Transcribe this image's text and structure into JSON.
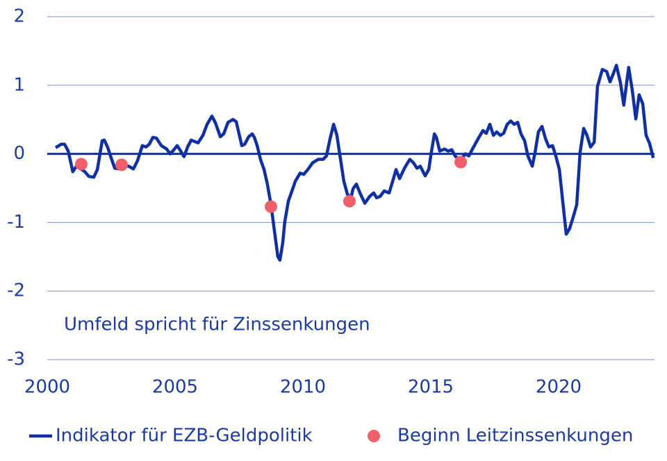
{
  "chart_data": {
    "type": "line",
    "annotation": "Umfeld spricht für Zinssenkungen",
    "xlim": [
      2000,
      2023.75
    ],
    "xticks": [
      2000,
      2005,
      2010,
      2015,
      2020
    ],
    "ylim": [
      -3,
      2
    ],
    "yticks": [
      -3,
      -2,
      -1,
      0,
      1,
      2
    ],
    "grid": true,
    "legend": "bottom",
    "series": [
      {
        "name": "Indikator für EZB-Geldpolitik",
        "type": "line",
        "color": "#0f2fa3",
        "x": [
          2000.33,
          2000.54,
          2000.68,
          2000.82,
          2001.0,
          2001.14,
          2001.28,
          2001.47,
          2001.63,
          2001.82,
          2001.96,
          2002.15,
          2002.23,
          2002.36,
          2002.5,
          2002.64,
          2002.83,
          2002.99,
          2003.18,
          2003.37,
          2003.53,
          2003.72,
          2003.86,
          2003.99,
          2004.13,
          2004.27,
          2004.46,
          2004.67,
          2004.81,
          2004.95,
          2005.08,
          2005.22,
          2005.35,
          2005.49,
          2005.63,
          2005.9,
          2006.09,
          2006.25,
          2006.44,
          2006.58,
          2006.77,
          2006.9,
          2007.07,
          2007.26,
          2007.39,
          2007.61,
          2007.72,
          2007.88,
          2008.02,
          2008.1,
          2008.21,
          2008.34,
          2008.48,
          2008.61,
          2008.75,
          2008.89,
          2009.02,
          2009.1,
          2009.21,
          2009.29,
          2009.43,
          2009.57,
          2009.7,
          2009.89,
          2010.03,
          2010.19,
          2010.38,
          2010.6,
          2010.79,
          2010.92,
          2011.06,
          2011.2,
          2011.33,
          2011.47,
          2011.6,
          2011.74,
          2011.88,
          2011.96,
          2012.09,
          2012.23,
          2012.42,
          2012.61,
          2012.77,
          2012.88,
          2013.02,
          2013.18,
          2013.37,
          2013.51,
          2013.64,
          2013.78,
          2013.97,
          2014.18,
          2014.32,
          2014.46,
          2014.59,
          2014.78,
          2014.92,
          2015.0,
          2015.14,
          2015.22,
          2015.35,
          2015.54,
          2015.68,
          2015.82,
          2015.95,
          2016.09,
          2016.22,
          2016.36,
          2016.49,
          2016.63,
          2016.85,
          2017.04,
          2017.17,
          2017.31,
          2017.45,
          2017.58,
          2017.72,
          2017.85,
          2017.99,
          2018.13,
          2018.26,
          2018.4,
          2018.53,
          2018.67,
          2018.8,
          2018.97,
          2019.08,
          2019.21,
          2019.35,
          2019.49,
          2019.62,
          2019.76,
          2019.89,
          2020.03,
          2020.16,
          2020.3,
          2020.43,
          2020.57,
          2020.71,
          2020.84,
          2020.98,
          2021.11,
          2021.25,
          2021.39,
          2021.52,
          2021.71,
          2021.88,
          2022.01,
          2022.12,
          2022.26,
          2022.42,
          2022.55,
          2022.74,
          2022.88,
          2023.02,
          2023.15,
          2023.29,
          2023.42,
          2023.56,
          2023.7
        ],
        "values": [
          0.09,
          0.14,
          0.14,
          0.04,
          -0.26,
          -0.18,
          -0.21,
          -0.26,
          -0.33,
          -0.34,
          -0.23,
          0.19,
          0.2,
          0.1,
          -0.06,
          -0.21,
          -0.22,
          -0.16,
          -0.18,
          -0.22,
          -0.1,
          0.12,
          0.1,
          0.14,
          0.24,
          0.23,
          0.12,
          0.07,
          0.0,
          0.06,
          0.12,
          0.04,
          -0.04,
          0.1,
          0.2,
          0.16,
          0.27,
          0.43,
          0.55,
          0.45,
          0.25,
          0.29,
          0.46,
          0.5,
          0.47,
          0.12,
          0.14,
          0.25,
          0.29,
          0.24,
          0.12,
          -0.08,
          -0.23,
          -0.44,
          -0.74,
          -1.14,
          -1.5,
          -1.55,
          -1.3,
          -0.99,
          -0.69,
          -0.54,
          -0.4,
          -0.28,
          -0.3,
          -0.23,
          -0.13,
          -0.08,
          -0.08,
          -0.03,
          0.22,
          0.43,
          0.27,
          -0.08,
          -0.4,
          -0.59,
          -0.64,
          -0.51,
          -0.44,
          -0.57,
          -0.72,
          -0.62,
          -0.57,
          -0.64,
          -0.62,
          -0.54,
          -0.57,
          -0.4,
          -0.23,
          -0.36,
          -0.21,
          -0.08,
          -0.13,
          -0.21,
          -0.18,
          -0.32,
          -0.23,
          -0.03,
          0.29,
          0.24,
          0.04,
          0.07,
          0.04,
          0.06,
          -0.03,
          -0.08,
          -0.06,
          0.0,
          -0.03,
          0.07,
          0.22,
          0.34,
          0.3,
          0.43,
          0.27,
          0.32,
          0.27,
          0.3,
          0.43,
          0.48,
          0.43,
          0.46,
          0.29,
          0.19,
          -0.03,
          -0.18,
          0.02,
          0.32,
          0.4,
          0.22,
          0.1,
          0.12,
          -0.03,
          -0.23,
          -0.69,
          -1.17,
          -1.09,
          -0.92,
          -0.74,
          0.02,
          0.37,
          0.27,
          0.1,
          0.17,
          0.98,
          1.23,
          1.2,
          1.05,
          1.15,
          1.29,
          1.03,
          0.71,
          1.26,
          0.93,
          0.51,
          0.86,
          0.73,
          0.27,
          0.15,
          -0.06
        ]
      },
      {
        "name": "Beginn Leitzinssenkungen",
        "type": "scatter",
        "color": "#f0606a",
        "x": [
          2001.33,
          2002.91,
          2008.75,
          2011.82,
          2016.17
        ],
        "values": [
          -0.15,
          -0.16,
          -0.77,
          -0.69,
          -0.12
        ]
      }
    ]
  }
}
